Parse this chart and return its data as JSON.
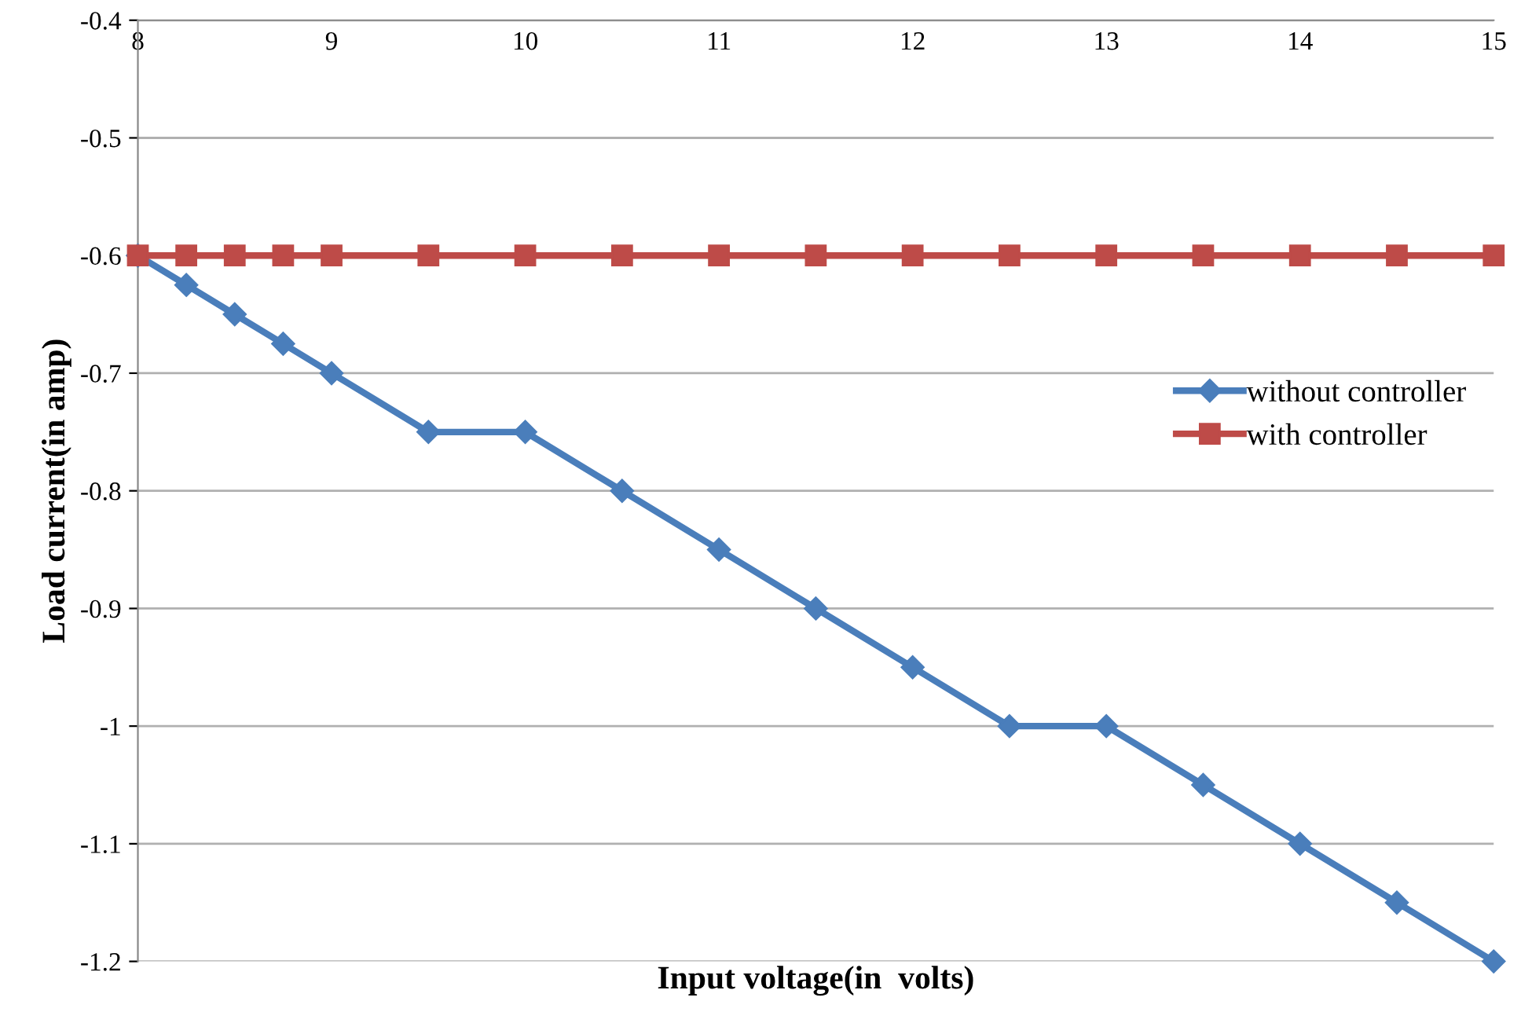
{
  "chart_data": {
    "type": "line",
    "xlabel": "Input voltage(in  volts)",
    "ylabel": "Load current(in amp)",
    "x": [
      8,
      8.25,
      8.5,
      8.75,
      9,
      9.5,
      10,
      10.5,
      11,
      11.5,
      12,
      12.5,
      13,
      13.5,
      14,
      14.5,
      15
    ],
    "series": [
      {
        "name": "without controller",
        "color": "#4a7ebb",
        "marker": "diamond",
        "values": [
          -0.6,
          -0.625,
          -0.65,
          -0.675,
          -0.7,
          -0.75,
          -0.75,
          -0.8,
          -0.85,
          -0.9,
          -0.95,
          -1,
          -1,
          -1.05,
          -1.1,
          -1.15,
          -1.2
        ]
      },
      {
        "name": "with controller",
        "color": "#be4b48",
        "marker": "square",
        "values": [
          -0.6,
          -0.6,
          -0.6,
          -0.6,
          -0.6,
          -0.6,
          -0.6,
          -0.6,
          -0.6,
          -0.6,
          -0.6,
          -0.6,
          -0.6,
          -0.6,
          -0.6,
          -0.6,
          -0.6
        ]
      }
    ],
    "xlim": [
      8,
      15
    ],
    "xticks": [
      8,
      9,
      10,
      11,
      12,
      13,
      14,
      15
    ],
    "ylim": [
      -1.2,
      -0.4
    ],
    "yticks": [
      -1.2,
      -1.1,
      -1,
      -0.9,
      -0.8,
      -0.7,
      -0.6,
      -0.5,
      -0.4
    ],
    "grid": "y",
    "legend": "right",
    "line_style": "solid"
  }
}
